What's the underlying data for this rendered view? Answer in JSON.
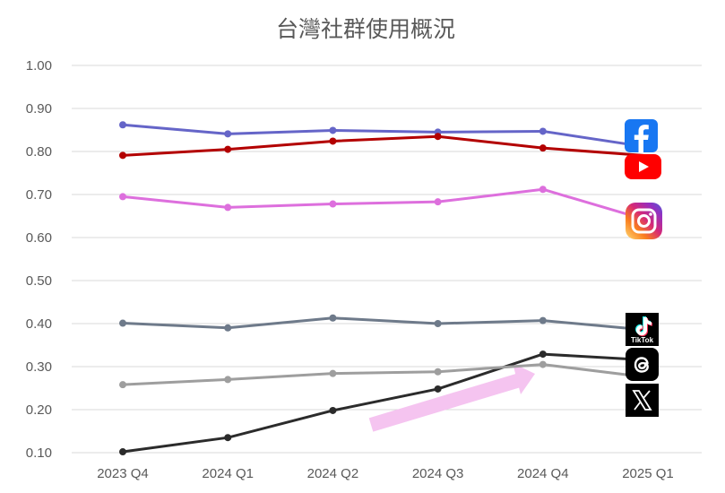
{
  "chart_data": {
    "type": "line",
    "title": "台灣社群使用概況",
    "xlabel": "",
    "ylabel": "",
    "ylim": [
      0.1,
      1.0
    ],
    "yticks": [
      "0.10",
      "0.20",
      "0.30",
      "0.40",
      "0.50",
      "0.60",
      "0.70",
      "0.80",
      "0.90",
      "1.00"
    ],
    "categories": [
      "2023 Q4",
      "2024 Q1",
      "2024 Q2",
      "2024 Q3",
      "2024 Q4",
      "2025 Q1"
    ],
    "grid": true,
    "legend": "platform icons at right end of each line",
    "series": [
      {
        "name": "Facebook",
        "icon": "facebook-icon",
        "color": "#6565c8",
        "values": [
          0.862,
          0.841,
          0.849,
          0.845,
          0.847,
          0.81
        ]
      },
      {
        "name": "YouTube",
        "icon": "youtube-icon",
        "color": "#b30000",
        "values": [
          0.791,
          0.805,
          0.824,
          0.835,
          0.808,
          0.79
        ]
      },
      {
        "name": "Instagram",
        "icon": "instagram-icon",
        "color": "#dd6fdd",
        "values": [
          0.695,
          0.67,
          0.678,
          0.683,
          0.712,
          0.64
        ]
      },
      {
        "name": "TikTok",
        "icon": "tiktok-icon",
        "color": "#6e7a8a",
        "values": [
          0.401,
          0.39,
          0.413,
          0.4,
          0.407,
          0.385
        ]
      },
      {
        "name": "Threads",
        "icon": "threads-icon",
        "color": "#2b2b2b",
        "values": [
          0.102,
          0.135,
          0.198,
          0.248,
          0.329,
          0.315
        ]
      },
      {
        "name": "X",
        "icon": "x-icon",
        "color": "#9e9e9e",
        "values": [
          0.258,
          0.27,
          0.284,
          0.288,
          0.305,
          0.275
        ]
      }
    ],
    "annotations": [
      {
        "type": "arrow",
        "color": "#f5c4f0",
        "description": "upward trend arrow"
      }
    ],
    "icon_labels": {
      "tiktok": "TikTok"
    }
  }
}
